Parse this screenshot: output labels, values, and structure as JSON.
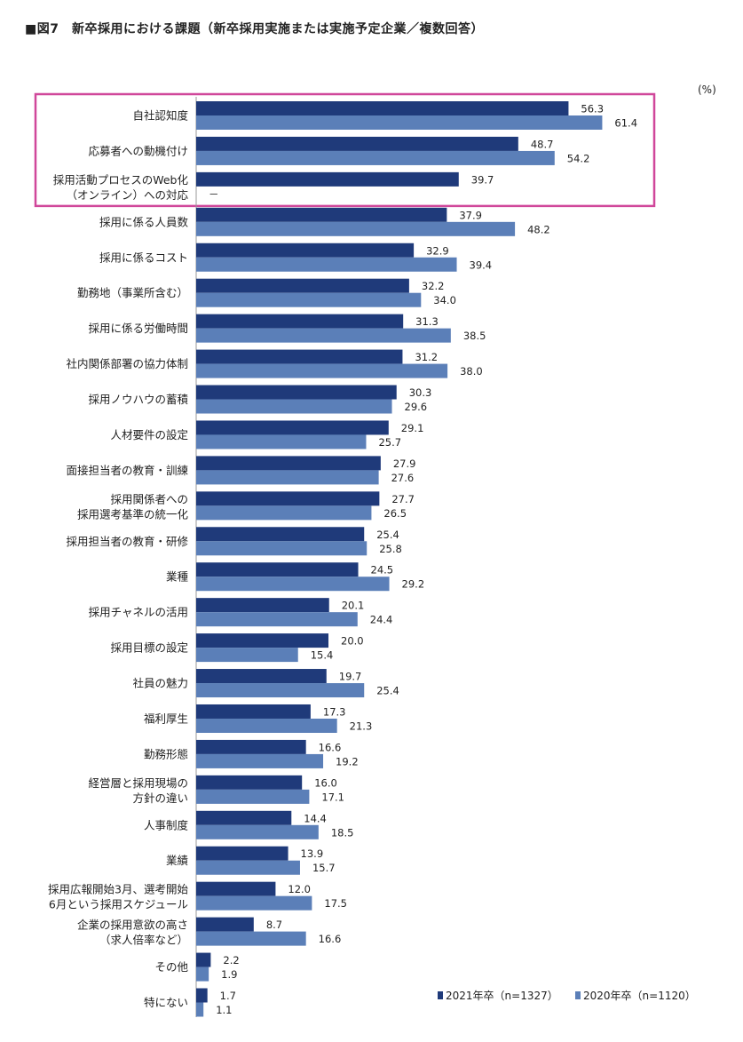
{
  "chart_data": {
    "type": "bar",
    "orientation": "horizontal",
    "title": "■図7　新卒採用における課題（新卒採用実施または実施予定企業／複数回答）",
    "unit": "(%)",
    "categories": [
      [
        "自社認知度"
      ],
      [
        "応募者への動機付け"
      ],
      [
        "採用活動プロセスのWeb化",
        "（オンライン）への対応"
      ],
      [
        "採用に係る人員数"
      ],
      [
        "採用に係るコスト"
      ],
      [
        "勤務地（事業所含む）"
      ],
      [
        "採用に係る労働時間"
      ],
      [
        "社内関係部署の協力体制"
      ],
      [
        "採用ノウハウの蓄積"
      ],
      [
        "人材要件の設定"
      ],
      [
        "面接担当者の教育・訓練"
      ],
      [
        "採用関係者への",
        "採用選考基準の統一化"
      ],
      [
        "採用担当者の教育・研修"
      ],
      [
        "業種"
      ],
      [
        "採用チャネルの活用"
      ],
      [
        "採用目標の設定"
      ],
      [
        "社員の魅力"
      ],
      [
        "福利厚生"
      ],
      [
        "勤務形態"
      ],
      [
        "経営層と採用現場の",
        "方針の違い"
      ],
      [
        "人事制度"
      ],
      [
        "業績"
      ],
      [
        "採用広報開始3月、選考開始",
        "6月という採用スケジュール"
      ],
      [
        "企業の採用意欲の高さ",
        "（求人倍率など）"
      ],
      [
        "その他"
      ],
      [
        "特にない"
      ]
    ],
    "series": [
      {
        "name": "2021年卒（n=1327）",
        "color": "#1f3a7a",
        "values": [
          56.3,
          48.7,
          39.7,
          37.9,
          32.9,
          32.2,
          31.3,
          31.2,
          30.3,
          29.1,
          27.9,
          27.7,
          25.4,
          24.5,
          20.1,
          20.0,
          19.7,
          17.3,
          16.6,
          16.0,
          14.4,
          13.9,
          12.0,
          8.7,
          2.2,
          1.7
        ],
        "labels": [
          "56.3",
          "48.7",
          "39.7",
          "37.9",
          "32.9",
          "32.2",
          "31.3",
          "31.2",
          "30.3",
          "29.1",
          "27.9",
          "27.7",
          "25.4",
          "24.5",
          "20.1",
          "20.0",
          "19.7",
          "17.3",
          "16.6",
          "16.0",
          "14.4",
          "13.9",
          "12.0",
          "8.7",
          "2.2",
          "1.7"
        ]
      },
      {
        "name": "2020年卒（n=1120）",
        "color": "#5b7fb8",
        "values": [
          61.4,
          54.2,
          null,
          48.2,
          39.4,
          34.0,
          38.5,
          38.0,
          29.6,
          25.7,
          27.6,
          26.5,
          25.8,
          29.2,
          24.4,
          15.4,
          25.4,
          21.3,
          19.2,
          17.1,
          18.5,
          15.7,
          17.5,
          16.6,
          1.9,
          1.1
        ],
        "labels": [
          "61.4",
          "54.2",
          "－",
          "48.2",
          "39.4",
          "34.0",
          "38.5",
          "38.0",
          "29.6",
          "25.7",
          "27.6",
          "26.5",
          "25.8",
          "29.2",
          "24.4",
          "15.4",
          "25.4",
          "21.3",
          "19.2",
          "17.1",
          "18.5",
          "15.7",
          "17.5",
          "16.6",
          "1.9",
          "1.1"
        ]
      }
    ],
    "highlight_indices": [
      0,
      1,
      2
    ],
    "highlight_color": "#d0479a",
    "xlim": [
      0,
      70
    ],
    "legend_position": "bottom-right",
    "grid": false
  }
}
